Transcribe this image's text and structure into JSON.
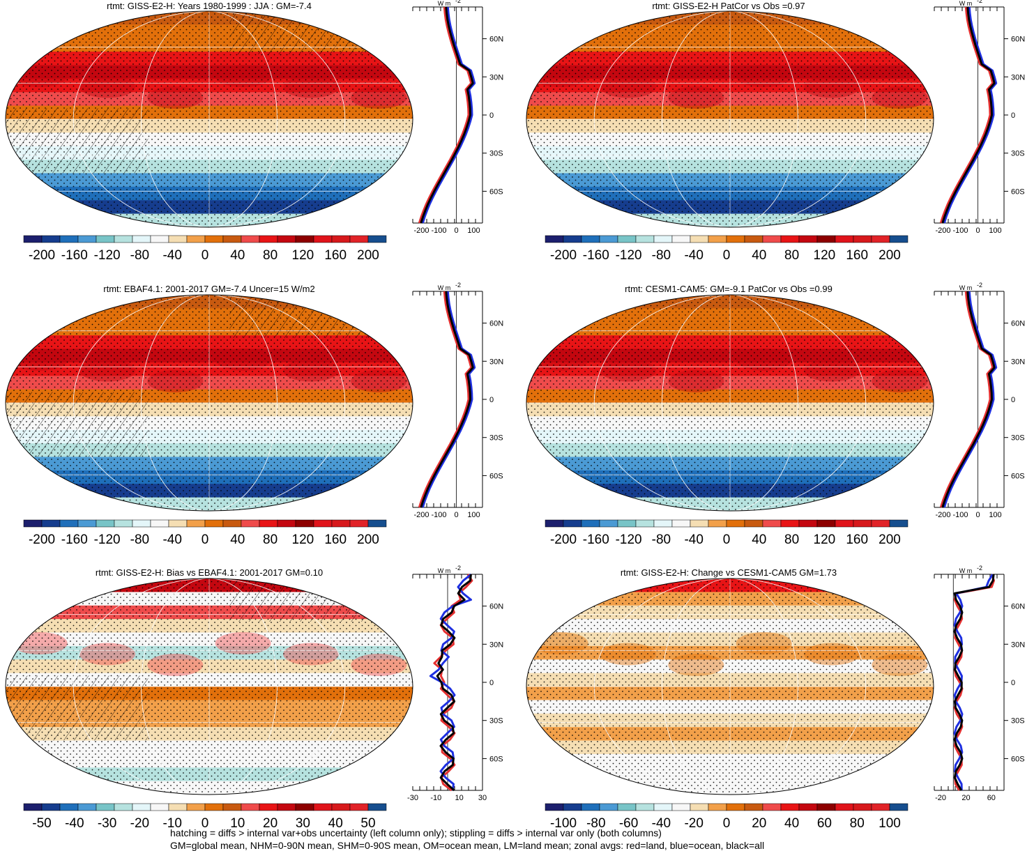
{
  "colors": {
    "palette": [
      "#1c1f6d",
      "#163d8e",
      "#1f6fba",
      "#4b9ad4",
      "#78c4c7",
      "#b6e2df",
      "#e4f6f9",
      "#f7f7f7",
      "#f5deb3",
      "#f2a04a",
      "#e2700b",
      "#c85a10",
      "#ef4b4b",
      "#e81416",
      "#c40710",
      "#8d0000",
      "#e0131a",
      "#d7191c",
      "#e12328",
      "#164e8e"
    ],
    "land": "#e53030",
    "ocean": "#1d2fe0",
    "all": "#000000"
  },
  "chart_data": [
    {
      "type": "map",
      "title": "rtmt: GISS-E2-H: Years 1980-1999 : JJA : GM=-7.4",
      "colorbar": {
        "ticks": [
          "-200",
          "-160",
          "-120",
          "-80",
          "-40",
          "0",
          "40",
          "80",
          "120",
          "160",
          "200"
        ]
      },
      "zonal": {
        "unit": "W m",
        "unit_sup": "-2",
        "xticks": [
          "-200",
          "-100",
          "0",
          "100"
        ],
        "lat_labels": [
          "60N",
          "30N",
          "0",
          "30S",
          "60S"
        ],
        "show_lat_labels": false,
        "xlim": [
          -250,
          150
        ],
        "xtick_values": [
          -200,
          -100,
          0,
          100
        ]
      }
    },
    {
      "type": "map",
      "title": "rtmt: GISS-E2-H PatCor vs Obs =0.97",
      "colorbar": {
        "ticks": [
          "-200",
          "-160",
          "-120",
          "-80",
          "-40",
          "0",
          "40",
          "80",
          "120",
          "160",
          "200"
        ]
      },
      "zonal": {
        "unit": "W m",
        "unit_sup": "-2",
        "xticks": [
          "-200",
          "-100",
          "0",
          "100"
        ],
        "lat_labels": [
          "60N",
          "30N",
          "0",
          "30S",
          "60S"
        ],
        "show_lat_labels": true,
        "xlim": [
          -250,
          150
        ],
        "xtick_values": [
          -200,
          -100,
          0,
          100
        ]
      }
    },
    {
      "type": "map",
      "title": "rtmt: EBAF4.1: 2001-2017 GM=-7.4 Uncer=15 W/m2",
      "colorbar": {
        "ticks": [
          "-200",
          "-160",
          "-120",
          "-80",
          "-40",
          "0",
          "40",
          "80",
          "120",
          "160",
          "200"
        ]
      },
      "zonal": {
        "unit": "W m",
        "unit_sup": "-2",
        "xticks": [
          "-200",
          "-100",
          "0",
          "100"
        ],
        "lat_labels": [
          "60N",
          "30N",
          "0",
          "30S",
          "60S"
        ],
        "show_lat_labels": false,
        "xlim": [
          -250,
          150
        ],
        "xtick_values": [
          -200,
          -100,
          0,
          100
        ]
      }
    },
    {
      "type": "map",
      "title": "rtmt: CESM1-CAM5: GM=-9.1 PatCor vs Obs =0.99",
      "colorbar": {
        "ticks": [
          "-200",
          "-160",
          "-120",
          "-80",
          "-40",
          "0",
          "40",
          "80",
          "120",
          "160",
          "200"
        ]
      },
      "zonal": {
        "unit": "W m",
        "unit_sup": "-2",
        "xticks": [
          "-200",
          "-100",
          "0",
          "100"
        ],
        "lat_labels": [
          "60N",
          "30N",
          "0",
          "30S",
          "60S"
        ],
        "show_lat_labels": true,
        "xlim": [
          -250,
          150
        ],
        "xtick_values": [
          -200,
          -100,
          0,
          100
        ]
      }
    },
    {
      "type": "map",
      "title": "rtmt: GISS-E2-H: Bias vs EBAF4.1: 2001-2017 GM=0.10",
      "colorbar": {
        "ticks": [
          "-50",
          "-40",
          "-30",
          "-20",
          "-10",
          "0",
          "10",
          "20",
          "30",
          "40",
          "50"
        ]
      },
      "zonal": {
        "unit": "W m",
        "unit_sup": "-2",
        "xticks": [
          "-30",
          "-10",
          "10",
          "30"
        ],
        "lat_labels": [
          "60N",
          "30N",
          "0",
          "30S",
          "60S"
        ],
        "show_lat_labels": false,
        "xlim": [
          -30,
          30
        ],
        "xtick_values": [
          -30,
          -10,
          10,
          30
        ]
      }
    },
    {
      "type": "map",
      "title": "rtmt: GISS-E2-H: Change vs CESM1-CAM5 GM=1.73",
      "colorbar": {
        "ticks": [
          "-100",
          "-80",
          "-60",
          "-40",
          "-20",
          "0",
          "20",
          "40",
          "60",
          "80",
          "100"
        ]
      },
      "zonal": {
        "unit": "W m",
        "unit_sup": "-2",
        "xticks": [
          "-20",
          "20",
          "60"
        ],
        "lat_labels": [
          "60N",
          "30N",
          "0",
          "30S",
          "60S"
        ],
        "show_lat_labels": true,
        "xlim": [
          -30,
          80
        ],
        "xtick_values": [
          -20,
          20,
          60
        ]
      }
    }
  ],
  "footer": {
    "line1": "hatching = diffs > internal var+obs uncertainty (left column only); stippling = diffs > internal var only (both columns)",
    "line2": "GM=global mean, NHM=0-90N mean, SHM=0-90S mean, OM=ocean mean, LM=land mean; zonal avgs: red=land, blue=ocean, black=all"
  }
}
